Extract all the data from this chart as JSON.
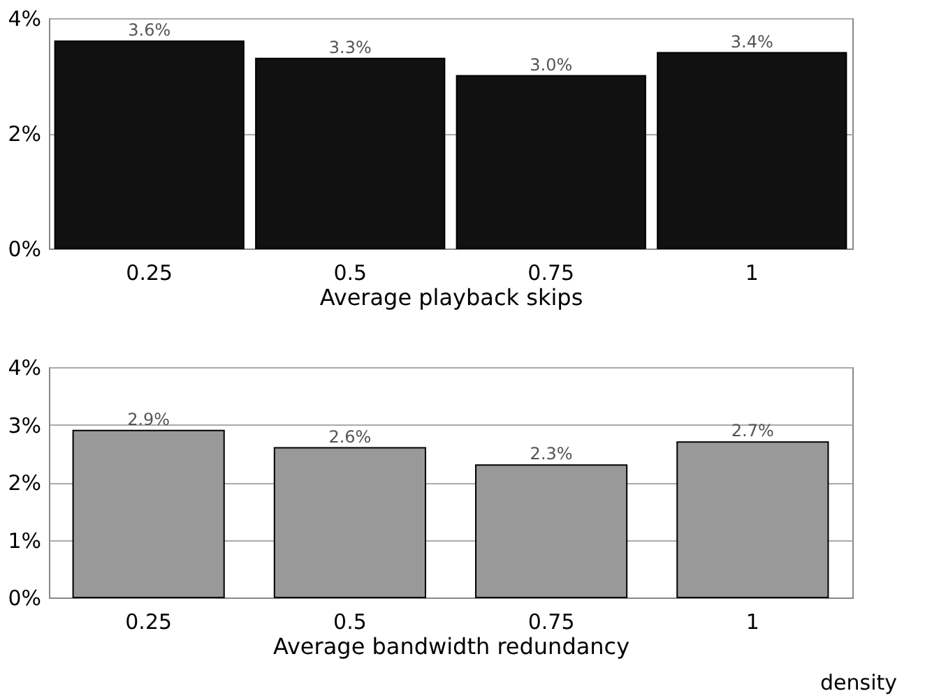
{
  "chart_data": [
    {
      "type": "bar",
      "xlabel": "Average playback skips",
      "categories": [
        "0.25",
        "0.5",
        "0.75",
        "1"
      ],
      "series": [
        {
          "color": "#111111",
          "values": [
            3.6,
            3.3,
            3.0,
            3.4
          ]
        }
      ],
      "value_labels": [
        "3.6%",
        "3.3%",
        "3.0%",
        "3.4%"
      ],
      "ylim": [
        0,
        4
      ],
      "yticks": [
        {
          "value": 0,
          "label": "0%"
        },
        {
          "value": 2,
          "label": "2%"
        },
        {
          "value": 4,
          "label": "4%"
        }
      ],
      "grid": "y"
    },
    {
      "type": "bar",
      "xlabel": "Average bandwidth redundancy",
      "categories": [
        "0.25",
        "0.5",
        "0.75",
        "1"
      ],
      "series": [
        {
          "color": "#999999",
          "values": [
            2.9,
            2.6,
            2.3,
            2.7
          ]
        }
      ],
      "value_labels": [
        "2.9%",
        "2.6%",
        "2.3%",
        "2.7%"
      ],
      "ylim": [
        0,
        4
      ],
      "yticks": [
        {
          "value": 0,
          "label": "0%"
        },
        {
          "value": 1,
          "label": "1%"
        },
        {
          "value": 2,
          "label": "2%"
        },
        {
          "value": 3,
          "label": "3%"
        },
        {
          "value": 4,
          "label": "4%"
        }
      ],
      "grid": "y",
      "annotations": [
        "density"
      ]
    }
  ]
}
